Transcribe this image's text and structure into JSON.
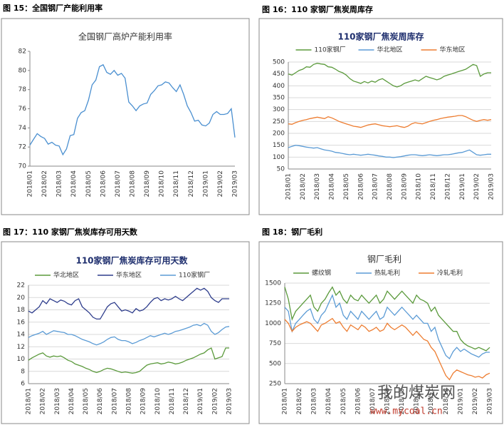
{
  "captions": [
    "图 15：全国钢厂产能利用率",
    "图 16：110 家钢厂焦炭周库存",
    "图 17：110 家钢厂焦炭库存可用天数",
    "图 18：钢厂毛利"
  ],
  "watermark": {
    "name": "我的煤炭网",
    "url": "www.mycoal.cn"
  },
  "chart_data": [
    {
      "type": "line",
      "title": "全国钢厂高炉产能利用率",
      "grid": false,
      "color": "#4a8fd0",
      "categories": [
        "2018/01",
        null,
        null,
        null,
        "2018/02",
        null,
        null,
        null,
        "2018/03",
        null,
        null,
        null,
        "2018/04",
        null,
        null,
        null,
        "2018/05",
        null,
        null,
        null,
        "2018/06",
        null,
        null,
        null,
        "2018/07",
        null,
        null,
        null,
        "2018/08",
        null,
        null,
        null,
        "2018/09",
        null,
        null,
        null,
        "2018/10",
        null,
        null,
        null,
        "2018/11",
        null,
        null,
        null,
        "2018/12",
        null,
        null,
        null,
        "2019/01",
        null,
        null,
        null,
        "2019/02",
        null,
        null,
        null,
        "2019/03"
      ],
      "values": [
        72.2,
        72.8,
        73.4,
        73.1,
        72.9,
        72.3,
        72.5,
        72.2,
        72.1,
        71.2,
        71.8,
        73.2,
        73.3,
        75.0,
        75.6,
        75.8,
        76.9,
        78.5,
        79.0,
        80.4,
        80.6,
        79.8,
        79.6,
        80.0,
        79.5,
        79.7,
        79.2,
        76.7,
        76.3,
        75.8,
        76.3,
        76.5,
        76.6,
        77.5,
        77.9,
        78.4,
        78.5,
        78.8,
        78.7,
        78.2,
        77.8,
        78.5,
        77.5,
        76.3,
        75.6,
        74.7,
        74.8,
        74.3,
        74.2,
        74.5,
        75.4,
        75.7,
        75.4,
        75.4,
        75.5,
        76.0,
        73.0
      ],
      "ylim": [
        70,
        82
      ],
      "yticks": [
        70,
        72,
        74,
        76,
        78,
        80,
        82
      ]
    },
    {
      "type": "line",
      "title": "110家钢厂焦炭周库存",
      "grid": true,
      "legend": "top",
      "categories": [
        "2018/01",
        null,
        null,
        null,
        "2018/02",
        null,
        null,
        null,
        "2018/03",
        null,
        null,
        null,
        "2018/04",
        null,
        null,
        null,
        "2018/05",
        null,
        null,
        null,
        "2018/06",
        null,
        null,
        null,
        "2018/07",
        null,
        null,
        null,
        "2018/08",
        null,
        null,
        null,
        "2018/09",
        null,
        null,
        null,
        "2018/10",
        null,
        null,
        null,
        "2018/11",
        null,
        null,
        null,
        "2018/12",
        null,
        null,
        null,
        "2019/01",
        null,
        null,
        null,
        "2019/02",
        null,
        null,
        null,
        "2019/03"
      ],
      "series": [
        {
          "name": "110家钢厂",
          "color": "#5b9a3c",
          "values": [
            450,
            445,
            455,
            465,
            470,
            480,
            478,
            490,
            495,
            492,
            490,
            480,
            478,
            470,
            460,
            455,
            445,
            430,
            420,
            415,
            410,
            418,
            412,
            420,
            415,
            425,
            430,
            420,
            410,
            400,
            395,
            400,
            410,
            415,
            420,
            425,
            420,
            430,
            440,
            435,
            430,
            425,
            430,
            440,
            445,
            450,
            455,
            460,
            465,
            470,
            480,
            490,
            485,
            440,
            450,
            455,
            455
          ]
        },
        {
          "name": "华北地区",
          "color": "#5b9bd5",
          "values": [
            140,
            145,
            150,
            148,
            145,
            142,
            140,
            138,
            140,
            135,
            130,
            128,
            125,
            120,
            118,
            115,
            112,
            110,
            112,
            110,
            108,
            110,
            112,
            110,
            108,
            105,
            103,
            100,
            100,
            98,
            100,
            102,
            105,
            108,
            110,
            110,
            108,
            106,
            108,
            110,
            108,
            106,
            108,
            110,
            110,
            112,
            115,
            118,
            120,
            125,
            130,
            120,
            110,
            108,
            110,
            112,
            112
          ]
        },
        {
          "name": "华东地区",
          "color": "#ed7d31",
          "values": [
            240,
            238,
            245,
            250,
            255,
            258,
            262,
            265,
            268,
            265,
            262,
            270,
            265,
            258,
            250,
            245,
            240,
            235,
            230,
            228,
            225,
            230,
            235,
            238,
            240,
            236,
            232,
            230,
            228,
            230,
            232,
            228,
            225,
            230,
            240,
            245,
            242,
            240,
            245,
            250,
            255,
            258,
            262,
            265,
            268,
            270,
            272,
            275,
            275,
            270,
            262,
            255,
            250,
            255,
            258,
            255,
            258
          ]
        }
      ],
      "ylim": [
        50,
        500
      ],
      "yticks": [
        50,
        100,
        150,
        200,
        250,
        300,
        350,
        400,
        450,
        500
      ]
    },
    {
      "type": "line",
      "title": "110家钢厂焦炭库存可用天数",
      "grid": true,
      "legend": "top",
      "categories": [
        "2018/01",
        null,
        null,
        null,
        "2018/02",
        null,
        null,
        null,
        "2018/03",
        null,
        null,
        null,
        "2018/04",
        null,
        null,
        null,
        "2018/05",
        null,
        null,
        null,
        "2018/06",
        null,
        null,
        null,
        "2018/07",
        null,
        null,
        null,
        "2018/08",
        null,
        null,
        null,
        "2018/09",
        null,
        null,
        null,
        "2018/10",
        null,
        null,
        null,
        "2018/11",
        null,
        null,
        null,
        "2018/12",
        null,
        null,
        null,
        "2019/01",
        null,
        null,
        null,
        "2019/02",
        null,
        null,
        null,
        "2019/03"
      ],
      "series": [
        {
          "name": "华北地区",
          "color": "#5b9a3c",
          "values": [
            9.8,
            10.2,
            10.5,
            10.8,
            11.0,
            10.5,
            10.3,
            10.5,
            10.4,
            10.5,
            10.2,
            9.8,
            9.6,
            9.2,
            9.0,
            8.8,
            8.5,
            8.3,
            8.0,
            7.8,
            8.0,
            8.3,
            8.5,
            8.4,
            8.2,
            8.0,
            7.8,
            7.9,
            7.8,
            7.7,
            7.8,
            8.0,
            8.5,
            9.0,
            9.2,
            9.3,
            9.4,
            9.2,
            9.3,
            9.5,
            9.4,
            9.2,
            9.3,
            9.5,
            9.8,
            10.0,
            10.2,
            10.5,
            10.8,
            11.0,
            11.5,
            11.8,
            10.0,
            10.2,
            10.4,
            11.8,
            11.8
          ]
        },
        {
          "name": "华东地区",
          "color": "#2e3d8c",
          "values": [
            17.8,
            17.5,
            18.0,
            18.5,
            19.5,
            19.0,
            19.8,
            19.5,
            19.2,
            19.6,
            19.4,
            19.0,
            18.8,
            19.5,
            19.8,
            18.5,
            18.0,
            17.5,
            16.8,
            16.5,
            16.5,
            17.5,
            18.5,
            19.0,
            19.2,
            18.5,
            17.8,
            18.0,
            17.8,
            17.5,
            18.2,
            17.8,
            18.0,
            18.5,
            19.2,
            19.8,
            20.0,
            19.5,
            19.8,
            19.6,
            19.8,
            20.2,
            19.8,
            19.5,
            20.0,
            20.5,
            21.0,
            21.5,
            21.2,
            21.5,
            21.0,
            20.0,
            19.5,
            19.2,
            19.8,
            19.8,
            19.8
          ]
        },
        {
          "name": "110家钢厂",
          "color": "#5b9bd5",
          "values": [
            13.5,
            13.8,
            14.0,
            14.2,
            14.5,
            14.0,
            14.3,
            14.6,
            14.5,
            14.4,
            14.3,
            14.0,
            14.0,
            13.8,
            13.5,
            13.2,
            13.0,
            12.8,
            12.5,
            12.3,
            12.5,
            12.8,
            13.2,
            13.5,
            13.6,
            13.2,
            13.0,
            13.0,
            12.8,
            12.5,
            12.7,
            13.0,
            13.2,
            13.5,
            13.8,
            13.6,
            13.8,
            14.0,
            14.2,
            14.0,
            14.2,
            14.5,
            14.6,
            14.8,
            15.0,
            15.2,
            15.5,
            15.6,
            15.4,
            15.8,
            15.5,
            14.5,
            14.0,
            14.3,
            14.8,
            15.2,
            15.3
          ]
        }
      ],
      "ylim": [
        6,
        22
      ],
      "yticks": [
        6,
        8,
        10,
        12,
        14,
        16,
        18,
        20,
        22
      ]
    },
    {
      "type": "line",
      "title": "钢厂毛利",
      "grid": true,
      "legend": "top",
      "categories": [
        "2018/01",
        null,
        null,
        null,
        "2018/02",
        null,
        null,
        null,
        "2018/03",
        null,
        null,
        null,
        "2018/04",
        null,
        null,
        null,
        "2018/05",
        null,
        null,
        null,
        "2018/06",
        null,
        null,
        null,
        "2018/07",
        null,
        null,
        null,
        "2018/08",
        null,
        null,
        null,
        "2018/09",
        null,
        null,
        null,
        "2018/10",
        null,
        null,
        null,
        "2018/11",
        null,
        null,
        null,
        "2018/12",
        null,
        null,
        null,
        "2019/01",
        null,
        null,
        null,
        "2019/02",
        null,
        null,
        null,
        "2019/03"
      ],
      "series": [
        {
          "name": "螺纹钢",
          "color": "#5b9a3c",
          "values": [
            1450,
            1300,
            1050,
            1150,
            1200,
            1250,
            1300,
            1350,
            1200,
            1150,
            1250,
            1300,
            1380,
            1450,
            1350,
            1400,
            1300,
            1250,
            1350,
            1300,
            1280,
            1350,
            1300,
            1250,
            1300,
            1350,
            1250,
            1300,
            1400,
            1350,
            1300,
            1350,
            1400,
            1350,
            1300,
            1250,
            1350,
            1300,
            1280,
            1250,
            1150,
            1200,
            1100,
            1050,
            1000,
            950,
            900,
            900,
            800,
            750,
            720,
            700,
            680,
            700,
            680,
            660,
            700
          ]
        },
        {
          "name": "热轧毛利",
          "color": "#5b9bd5",
          "values": [
            1200,
            1150,
            900,
            1000,
            1050,
            1100,
            1150,
            1180,
            1050,
            1000,
            1100,
            1150,
            1250,
            1350,
            1200,
            1250,
            1100,
            1050,
            1150,
            1100,
            1050,
            1150,
            1100,
            1050,
            1100,
            1150,
            1050,
            1080,
            1200,
            1150,
            1100,
            1150,
            1200,
            1150,
            1100,
            1050,
            1100,
            1050,
            1000,
            1000,
            900,
            950,
            800,
            700,
            600,
            560,
            650,
            700,
            650,
            680,
            650,
            620,
            600,
            580,
            620,
            640,
            640
          ]
        },
        {
          "name": "冷轧毛利",
          "color": "#ed7d31",
          "values": [
            1050,
            1000,
            900,
            950,
            980,
            1000,
            1020,
            1000,
            950,
            900,
            980,
            1000,
            1030,
            1060,
            1000,
            1020,
            950,
            900,
            980,
            950,
            920,
            980,
            950,
            900,
            920,
            950,
            900,
            920,
            1000,
            950,
            920,
            950,
            980,
            950,
            900,
            850,
            900,
            850,
            800,
            780,
            700,
            650,
            550,
            450,
            350,
            300,
            380,
            420,
            400,
            380,
            360,
            350,
            330,
            340,
            320,
            360,
            380
          ]
        }
      ],
      "ylim": [
        250,
        1500
      ],
      "yticks": [
        250,
        500,
        750,
        1000,
        1250,
        1500
      ]
    }
  ]
}
